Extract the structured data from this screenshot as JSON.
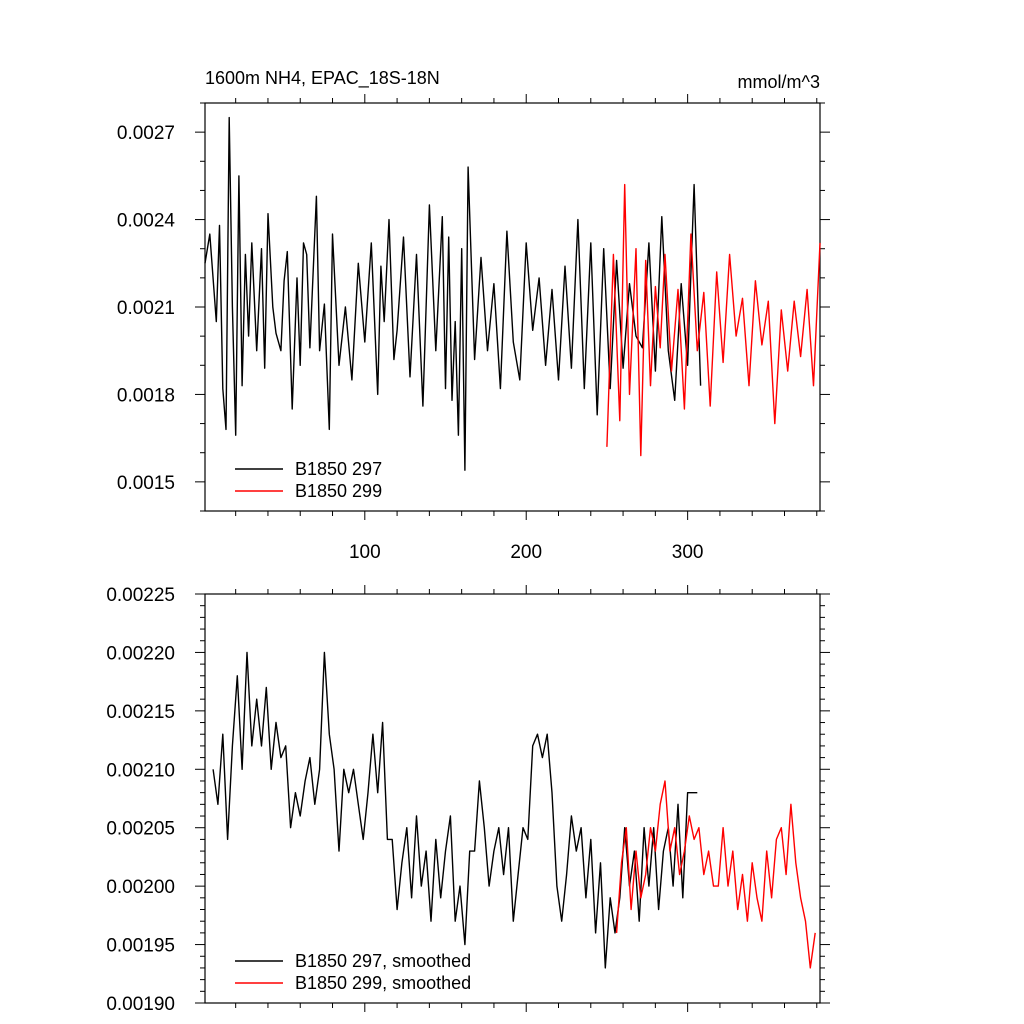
{
  "chart_data": [
    {
      "type": "line",
      "title": "1600m NH4, EPAC_18S-18N",
      "units": "mmol/m^3",
      "xlabel": "",
      "ylabel": "",
      "xlim": [
        1,
        382
      ],
      "ylim": [
        0.0014,
        0.0028
      ],
      "x_ticks": [
        100,
        200,
        300
      ],
      "y_ticks": [
        0.0015,
        0.0018,
        0.0021,
        0.0024,
        0.0027
      ],
      "y_tick_labels": [
        "0.0015",
        "0.0018",
        "0.0021",
        "0.0024",
        "0.0027"
      ],
      "legend_position": "bottom-left",
      "series": [
        {
          "name": "B1850 297",
          "color": "#000000",
          "x": [
            1,
            4,
            8,
            10,
            12,
            14,
            16,
            18,
            20,
            22,
            24,
            26,
            28,
            30,
            33,
            36,
            38,
            40,
            43,
            45,
            48,
            50,
            52,
            55,
            58,
            60,
            62,
            64,
            66,
            70,
            72,
            75,
            78,
            80,
            84,
            88,
            92,
            96,
            100,
            104,
            108,
            110,
            112,
            115,
            118,
            120,
            124,
            128,
            132,
            136,
            140,
            144,
            148,
            150,
            152,
            154,
            156,
            158,
            160,
            162,
            164,
            168,
            172,
            176,
            180,
            184,
            188,
            192,
            196,
            200,
            204,
            208,
            212,
            216,
            220,
            224,
            228,
            232,
            236,
            240,
            244,
            248,
            252,
            256,
            260,
            264,
            268,
            272,
            276,
            280,
            284,
            288,
            292,
            296,
            300,
            304,
            308
          ],
          "y": [
            0.00225,
            0.00235,
            0.00205,
            0.00238,
            0.00182,
            0.00168,
            0.00275,
            0.0021,
            0.00166,
            0.00255,
            0.00183,
            0.00228,
            0.002,
            0.00232,
            0.00195,
            0.0023,
            0.00189,
            0.00242,
            0.0021,
            0.00201,
            0.00195,
            0.00219,
            0.00229,
            0.00175,
            0.0022,
            0.0019,
            0.00232,
            0.00228,
            0.00196,
            0.00248,
            0.00195,
            0.00211,
            0.00168,
            0.00235,
            0.0019,
            0.0021,
            0.00185,
            0.00225,
            0.00198,
            0.00232,
            0.0018,
            0.00224,
            0.00205,
            0.0024,
            0.00192,
            0.00202,
            0.00234,
            0.00186,
            0.00228,
            0.00176,
            0.00245,
            0.00195,
            0.00241,
            0.00182,
            0.00234,
            0.00178,
            0.00205,
            0.00166,
            0.0023,
            0.00154,
            0.00258,
            0.00192,
            0.00227,
            0.00195,
            0.00218,
            0.00182,
            0.00236,
            0.00198,
            0.00185,
            0.00232,
            0.00202,
            0.0022,
            0.0019,
            0.00216,
            0.00185,
            0.00224,
            0.00189,
            0.0024,
            0.00182,
            0.00232,
            0.00173,
            0.0023,
            0.00182,
            0.00226,
            0.00189,
            0.00218,
            0.002,
            0.00196,
            0.00232,
            0.00188,
            0.00241,
            0.00195,
            0.00178,
            0.00218,
            0.0019,
            0.00252,
            0.00183
          ]
        },
        {
          "name": "B1850 299",
          "color": "#ff0000",
          "x": [
            250,
            254,
            258,
            261,
            264,
            268,
            271,
            274,
            277,
            280,
            283,
            286,
            290,
            294,
            298,
            302,
            306,
            310,
            314,
            318,
            322,
            326,
            330,
            334,
            338,
            342,
            346,
            350,
            354,
            358,
            362,
            366,
            370,
            374,
            378,
            382
          ],
          "y": [
            0.00162,
            0.00228,
            0.00171,
            0.00252,
            0.0018,
            0.0023,
            0.00159,
            0.00226,
            0.00183,
            0.00217,
            0.00196,
            0.00228,
            0.00188,
            0.00216,
            0.00175,
            0.00235,
            0.00195,
            0.00215,
            0.00176,
            0.00222,
            0.00191,
            0.00228,
            0.002,
            0.00213,
            0.00183,
            0.00219,
            0.00197,
            0.00212,
            0.0017,
            0.00209,
            0.00188,
            0.00212,
            0.00193,
            0.00216,
            0.00183,
            0.00232
          ]
        }
      ]
    },
    {
      "type": "line",
      "title": "",
      "xlabel": "",
      "ylabel": "",
      "xlim": [
        1,
        382
      ],
      "ylim": [
        0.0019,
        0.00225
      ],
      "x_ticks": [
        100,
        200,
        300
      ],
      "y_ticks": [
        0.0019,
        0.00195,
        0.002,
        0.00205,
        0.0021,
        0.00215,
        0.0022,
        0.00225
      ],
      "y_tick_labels": [
        "0.00190",
        "0.00195",
        "0.00200",
        "0.00205",
        "0.00210",
        "0.00215",
        "0.00220",
        "0.00225"
      ],
      "legend_position": "bottom-left",
      "series": [
        {
          "name": "B1850 297, smoothed",
          "color": "#000000",
          "x": [
            6,
            9,
            12,
            15,
            18,
            21,
            24,
            27,
            30,
            33,
            36,
            39,
            42,
            45,
            48,
            51,
            54,
            57,
            60,
            63,
            66,
            69,
            72,
            75,
            78,
            81,
            84,
            87,
            90,
            93,
            96,
            99,
            102,
            105,
            108,
            111,
            114,
            117,
            120,
            123,
            126,
            129,
            132,
            135,
            138,
            141,
            144,
            147,
            150,
            153,
            156,
            159,
            162,
            165,
            168,
            171,
            174,
            177,
            180,
            183,
            186,
            189,
            192,
            195,
            198,
            201,
            204,
            207,
            210,
            213,
            216,
            219,
            222,
            225,
            228,
            231,
            234,
            237,
            240,
            243,
            246,
            249,
            252,
            255,
            258,
            261,
            264,
            267,
            270,
            273,
            276,
            279,
            282,
            285,
            288,
            291,
            294,
            297,
            300,
            303,
            306
          ],
          "y": [
            0.0021,
            0.00207,
            0.00213,
            0.00204,
            0.00212,
            0.00218,
            0.0021,
            0.0022,
            0.00212,
            0.00216,
            0.00212,
            0.00217,
            0.0021,
            0.00214,
            0.00211,
            0.00212,
            0.00205,
            0.00208,
            0.00206,
            0.00209,
            0.00211,
            0.00207,
            0.0021,
            0.0022,
            0.00213,
            0.0021,
            0.00203,
            0.0021,
            0.00208,
            0.0021,
            0.00207,
            0.00204,
            0.00208,
            0.00213,
            0.00208,
            0.00214,
            0.00204,
            0.00204,
            0.00198,
            0.00202,
            0.00205,
            0.00199,
            0.00206,
            0.002,
            0.00203,
            0.00197,
            0.00204,
            0.00199,
            0.00203,
            0.00206,
            0.00197,
            0.002,
            0.00195,
            0.00203,
            0.00203,
            0.00209,
            0.00205,
            0.002,
            0.00203,
            0.00205,
            0.00201,
            0.00205,
            0.00197,
            0.00201,
            0.00205,
            0.00204,
            0.00212,
            0.00213,
            0.00211,
            0.00213,
            0.00208,
            0.002,
            0.00197,
            0.00201,
            0.00206,
            0.00203,
            0.00205,
            0.00199,
            0.00204,
            0.00196,
            0.00202,
            0.00193,
            0.00199,
            0.00196,
            0.00199,
            0.00205,
            0.002,
            0.00203,
            0.00197,
            0.00205,
            0.002,
            0.00205,
            0.00198,
            0.00203,
            0.00205,
            0.002,
            0.00207,
            0.00199,
            0.00208,
            0.00208,
            0.00208
          ]
        },
        {
          "name": "B1850 299, smoothed",
          "color": "#ff0000",
          "x": [
            256,
            259,
            262,
            265,
            268,
            271,
            274,
            277,
            280,
            283,
            286,
            289,
            292,
            295,
            298,
            301,
            304,
            307,
            310,
            313,
            316,
            319,
            322,
            325,
            328,
            331,
            334,
            337,
            340,
            343,
            346,
            349,
            352,
            355,
            358,
            361,
            364,
            367,
            370,
            373,
            376,
            379
          ],
          "y": [
            0.00196,
            0.00202,
            0.00205,
            0.00198,
            0.00203,
            0.00199,
            0.00201,
            0.00205,
            0.00203,
            0.00207,
            0.00209,
            0.00203,
            0.00205,
            0.00201,
            0.00203,
            0.00206,
            0.00204,
            0.00205,
            0.00201,
            0.00203,
            0.002,
            0.002,
            0.00205,
            0.002,
            0.00203,
            0.00198,
            0.00201,
            0.00197,
            0.00202,
            0.00199,
            0.00197,
            0.00203,
            0.00199,
            0.00204,
            0.00205,
            0.00201,
            0.00207,
            0.00202,
            0.00199,
            0.00197,
            0.00193,
            0.00196
          ]
        }
      ]
    }
  ]
}
